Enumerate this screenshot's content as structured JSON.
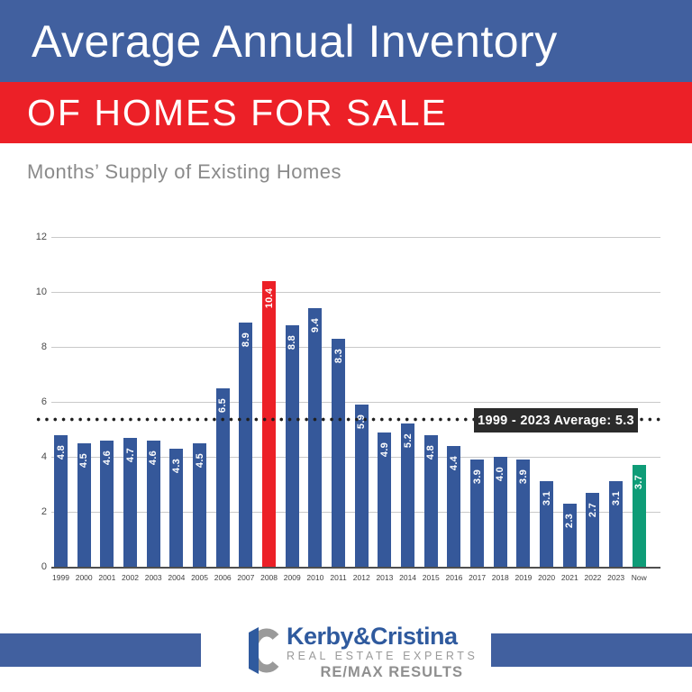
{
  "header": {
    "title": "Average Annual Inventory",
    "band": "OF HOMES FOR SALE",
    "subtitle": "Months’ Supply of Existing Homes"
  },
  "colors": {
    "header_blue": "#41609F",
    "band_red": "#EC2027",
    "bar_blue": "#35589A",
    "bar_red": "#EC2027",
    "bar_green": "#0E9C77",
    "average_box_bg": "#2B2B2B",
    "subtitle_gray": "#8A8A8A",
    "brand_blue": "#2F5A9E",
    "logo_gray": "#9A9A9A"
  },
  "chart_data": {
    "type": "bar",
    "title": "Average Annual Inventory of Homes for Sale",
    "ylabel": "Months' Supply of Existing Homes",
    "xlabel": "",
    "ylim": [
      0,
      12
    ],
    "yticks": [
      "0",
      "2",
      "4",
      "6",
      "8",
      "10",
      "12"
    ],
    "grid": "horizontal",
    "categories": [
      "1999",
      "2000",
      "2001",
      "2002",
      "2003",
      "2004",
      "2005",
      "2006",
      "2007",
      "2008",
      "2009",
      "2010",
      "2011",
      "2012",
      "2013",
      "2014",
      "2015",
      "2016",
      "2017",
      "2018",
      "2019",
      "2020",
      "2021",
      "2022",
      "2023",
      "Now"
    ],
    "values": [
      4.8,
      4.5,
      4.6,
      4.7,
      4.6,
      4.3,
      4.5,
      6.5,
      8.9,
      10.4,
      8.8,
      9.4,
      8.3,
      5.9,
      4.9,
      5.2,
      4.8,
      4.4,
      3.9,
      4.0,
      3.9,
      3.1,
      2.3,
      2.7,
      3.1,
      3.7
    ],
    "value_labels": [
      "4.8",
      "4.5",
      "4.6",
      "4.7",
      "4.6",
      "4.3",
      "4.5",
      "6.5",
      "8.9",
      "10.4",
      "8.8",
      "9.4",
      "8.3",
      "5.9",
      "4.9",
      "5.2",
      "4.8",
      "4.4",
      "3.9",
      "4.0",
      "3.9",
      "3.1",
      "2.3",
      "2.7",
      "3.1",
      "3.7"
    ],
    "highlight_bars": {
      "2008": "bar_red",
      "Now": "bar_green"
    },
    "default_bar_color_key": "bar_blue",
    "average_line": {
      "value": 5.3,
      "label": "1999 - 2023 Average: 5.3",
      "style": "dotted"
    }
  },
  "footer": {
    "brand": "Kerby&Cristina",
    "tagline": "REAL ESTATE EXPERTS",
    "brand2": "RE/MAX RESULTS",
    "monogram": "KC"
  }
}
